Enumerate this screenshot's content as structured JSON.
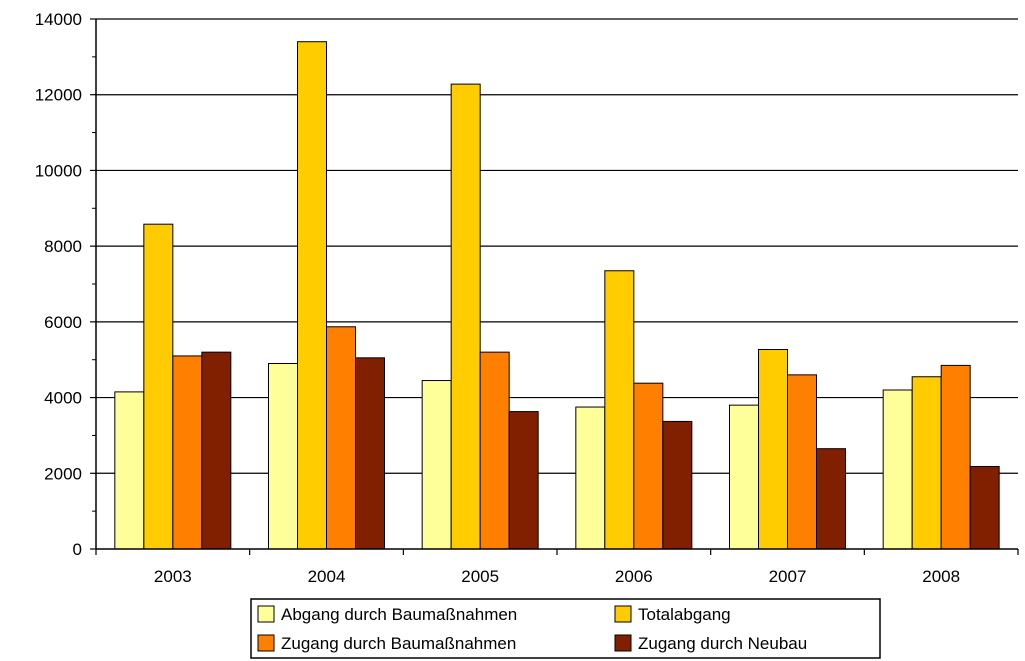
{
  "chart_data": {
    "type": "bar",
    "title": "",
    "xlabel": "",
    "ylabel": "",
    "ylim": [
      0,
      14000
    ],
    "yticks": [
      0,
      2000,
      4000,
      6000,
      8000,
      10000,
      12000,
      14000
    ],
    "grid": true,
    "legend_position": "bottom",
    "categories": [
      "2003",
      "2004",
      "2005",
      "2006",
      "2007",
      "2008"
    ],
    "series": [
      {
        "name": "Abgang durch Baumaßnahmen",
        "color": "#FFFF99",
        "values": [
          4150,
          4900,
          4450,
          3750,
          3800,
          4200
        ]
      },
      {
        "name": "Totalabgang",
        "color": "#FFCC00",
        "values": [
          8580,
          13400,
          12280,
          7350,
          5270,
          4550
        ]
      },
      {
        "name": "Zugang durch Baumaßnahmen",
        "color": "#FF8000",
        "values": [
          5100,
          5870,
          5200,
          4380,
          4600,
          4850
        ]
      },
      {
        "name": "Zugang durch Neubau",
        "color": "#802000",
        "values": [
          5200,
          5050,
          3630,
          3370,
          2650,
          2180
        ]
      }
    ]
  }
}
